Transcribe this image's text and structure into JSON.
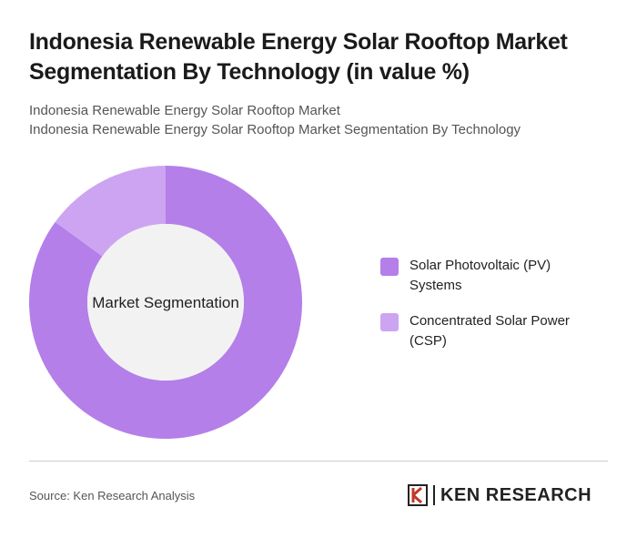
{
  "chart_data": {
    "type": "pie",
    "title": "Indonesia Renewable Energy Solar Rooftop Market Segmentation By Technology (in value %)",
    "subtitles": [
      "Indonesia Renewable Energy Solar Rooftop Market",
      "Indonesia Renewable Energy Solar Rooftop Market Segmentation By Technology"
    ],
    "center_label": "Market Segmentation",
    "categories": [
      "Solar Photovoltaic (PV) Systems",
      "Concentrated Solar Power (CSP)"
    ],
    "values": [
      85,
      15
    ],
    "colors": [
      "#b47fe9",
      "#cda4f1"
    ],
    "source": "Source: Ken Research Analysis"
  },
  "logo": {
    "text": "KEN RESEARCH"
  }
}
